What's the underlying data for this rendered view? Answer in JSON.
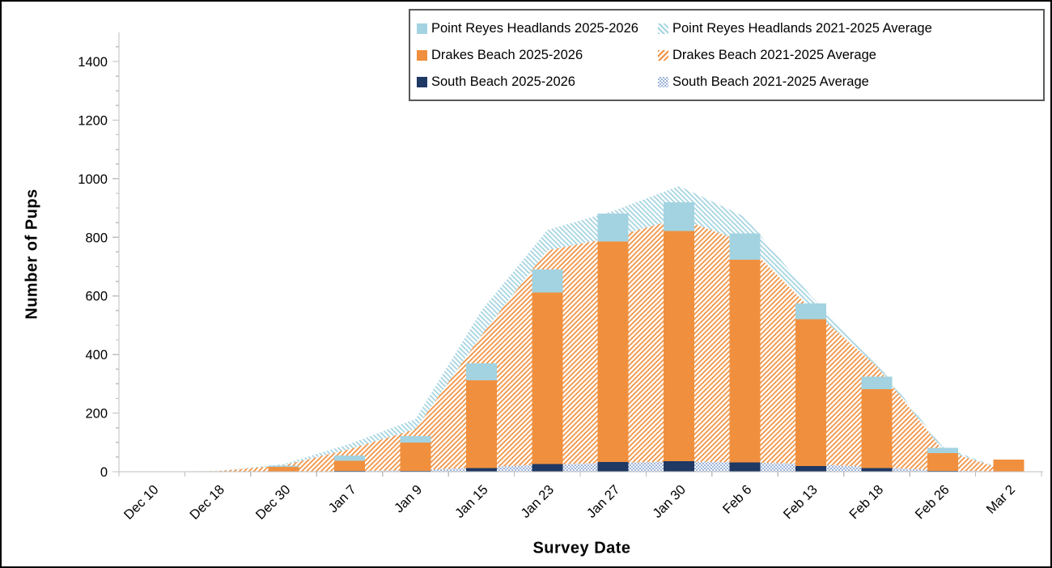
{
  "chart_data": {
    "type": "bar",
    "subtype": "stacked-columns-with-stacked-pattern-areas",
    "title": "",
    "xlabel": "Survey Date",
    "ylabel": "Number of Pups",
    "ylim": [
      0,
      1500
    ],
    "y_major_ticks": [
      0,
      200,
      400,
      600,
      800,
      1000,
      1200,
      1400
    ],
    "y_minor_step": 50,
    "grid": false,
    "legend_position": "top-right-inside-box",
    "categories": [
      "Dec 10",
      "Dec 18",
      "Dec 30",
      "Jan 7",
      "Jan 9",
      "Jan 15",
      "Jan 23",
      "Jan 27",
      "Jan 30",
      "Feb 6",
      "Feb 13",
      "Feb 18",
      "Feb 26",
      "Mar 2"
    ],
    "bar_series": [
      {
        "name": "South Beach 2025-2026",
        "color": "#1F3864",
        "values": [
          0,
          0,
          0,
          3,
          3,
          12,
          26,
          33,
          36,
          32,
          20,
          12,
          3,
          0
        ]
      },
      {
        "name": "Drakes Beach 2025-2026",
        "color": "#F0903F",
        "values": [
          0,
          0,
          17,
          34,
          96,
          300,
          586,
          753,
          785,
          692,
          500,
          270,
          61,
          42
        ]
      },
      {
        "name": "Point Reyes Headlands 2025-2026",
        "color": "#A3D3E1",
        "values": [
          0,
          0,
          4,
          18,
          23,
          58,
          79,
          95,
          99,
          89,
          55,
          43,
          17,
          0
        ]
      }
    ],
    "area_series": [
      {
        "name": "South Beach 2021-2025 Average",
        "color": "#9DB3D9",
        "pattern": "dotted",
        "values": [
          0,
          0,
          0,
          2,
          5,
          15,
          25,
          30,
          35,
          32,
          26,
          15,
          4,
          0
        ]
      },
      {
        "name": "Drakes Beach 2021-2025 Average",
        "color": "#F0903F",
        "pattern": "hatch-up",
        "values": [
          0,
          2,
          22,
          75,
          140,
          450,
          730,
          770,
          830,
          750,
          530,
          345,
          70,
          2
        ]
      },
      {
        "name": "Point Reyes Headlands 2021-2025 Average",
        "color": "#A3D3E1",
        "pattern": "hatch-down",
        "values": [
          0,
          1,
          4,
          18,
          35,
          85,
          70,
          90,
          110,
          88,
          44,
          10,
          11,
          0
        ]
      }
    ],
    "legend": {
      "items": [
        {
          "label": "Point Reyes Headlands 2025-2026",
          "swatch": "solid",
          "color": "#A3D3E1"
        },
        {
          "label": "Point Reyes Headlands 2021-2025 Average",
          "swatch": "hatch-down",
          "color": "#A3D3E1"
        },
        {
          "label": "Drakes Beach 2025-2026",
          "swatch": "solid",
          "color": "#F0903F"
        },
        {
          "label": "Drakes Beach 2021-2025 Average",
          "swatch": "hatch-up",
          "color": "#F0903F"
        },
        {
          "label": "South Beach 2025-2026",
          "swatch": "solid",
          "color": "#1F3864"
        },
        {
          "label": "South Beach 2021-2025 Average",
          "swatch": "dotted",
          "color": "#9DB3D9"
        }
      ]
    },
    "colors": {
      "axis": "#BFBFBF",
      "text": "#000000",
      "background": "#FFFFFF",
      "border": "#000000"
    }
  }
}
